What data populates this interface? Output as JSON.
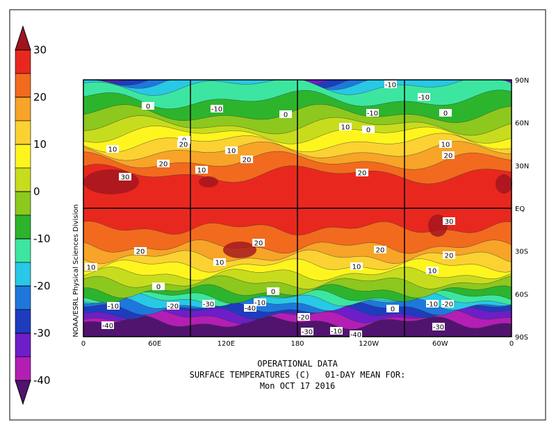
{
  "map": {
    "colorbar": {
      "ticks": [
        30,
        20,
        10,
        0,
        -10,
        -20,
        -30,
        -40
      ],
      "colors": [
        "#a0141e",
        "#e8281e",
        "#f26a1e",
        "#f7a428",
        "#fbd232",
        "#fff51e",
        "#c8dc1e",
        "#8cc81e",
        "#2db42d",
        "#3ce6a0",
        "#28c8e6",
        "#1e78dc",
        "#1e3cbe",
        "#6e1ec8",
        "#b41eb4",
        "#50146e"
      ]
    },
    "x_axis_labels": [
      "0",
      "60E",
      "120E",
      "180",
      "120W",
      "60W",
      "0"
    ],
    "y_axis_labels": [
      "90N",
      "60N",
      "30N",
      "EQ",
      "30S",
      "60S",
      "90S"
    ],
    "side_label": "NOAA/ESRL Physical Sciences Division",
    "contour_labels": [
      "-10",
      "-10",
      "0",
      "-10",
      "0",
      "-10",
      "0",
      "10",
      "0",
      "0",
      "10",
      "10",
      "10",
      "20",
      "20",
      "20",
      "20",
      "20",
      "10",
      "30",
      "30",
      "20",
      "20",
      "20",
      "20",
      "10",
      "10",
      "10",
      "10",
      "0",
      "0",
      "-10",
      "-20",
      "-30",
      "-40",
      "-10",
      "-10",
      "-20",
      "0",
      "-20",
      "-40",
      "-30",
      "-30",
      "-10",
      "-40"
    ],
    "caption": [
      "OPERATIONAL DATA",
      "SURFACE TEMPERATURES (C)   01-DAY MEAN FOR:",
      "Mon OCT 17 2016"
    ]
  }
}
